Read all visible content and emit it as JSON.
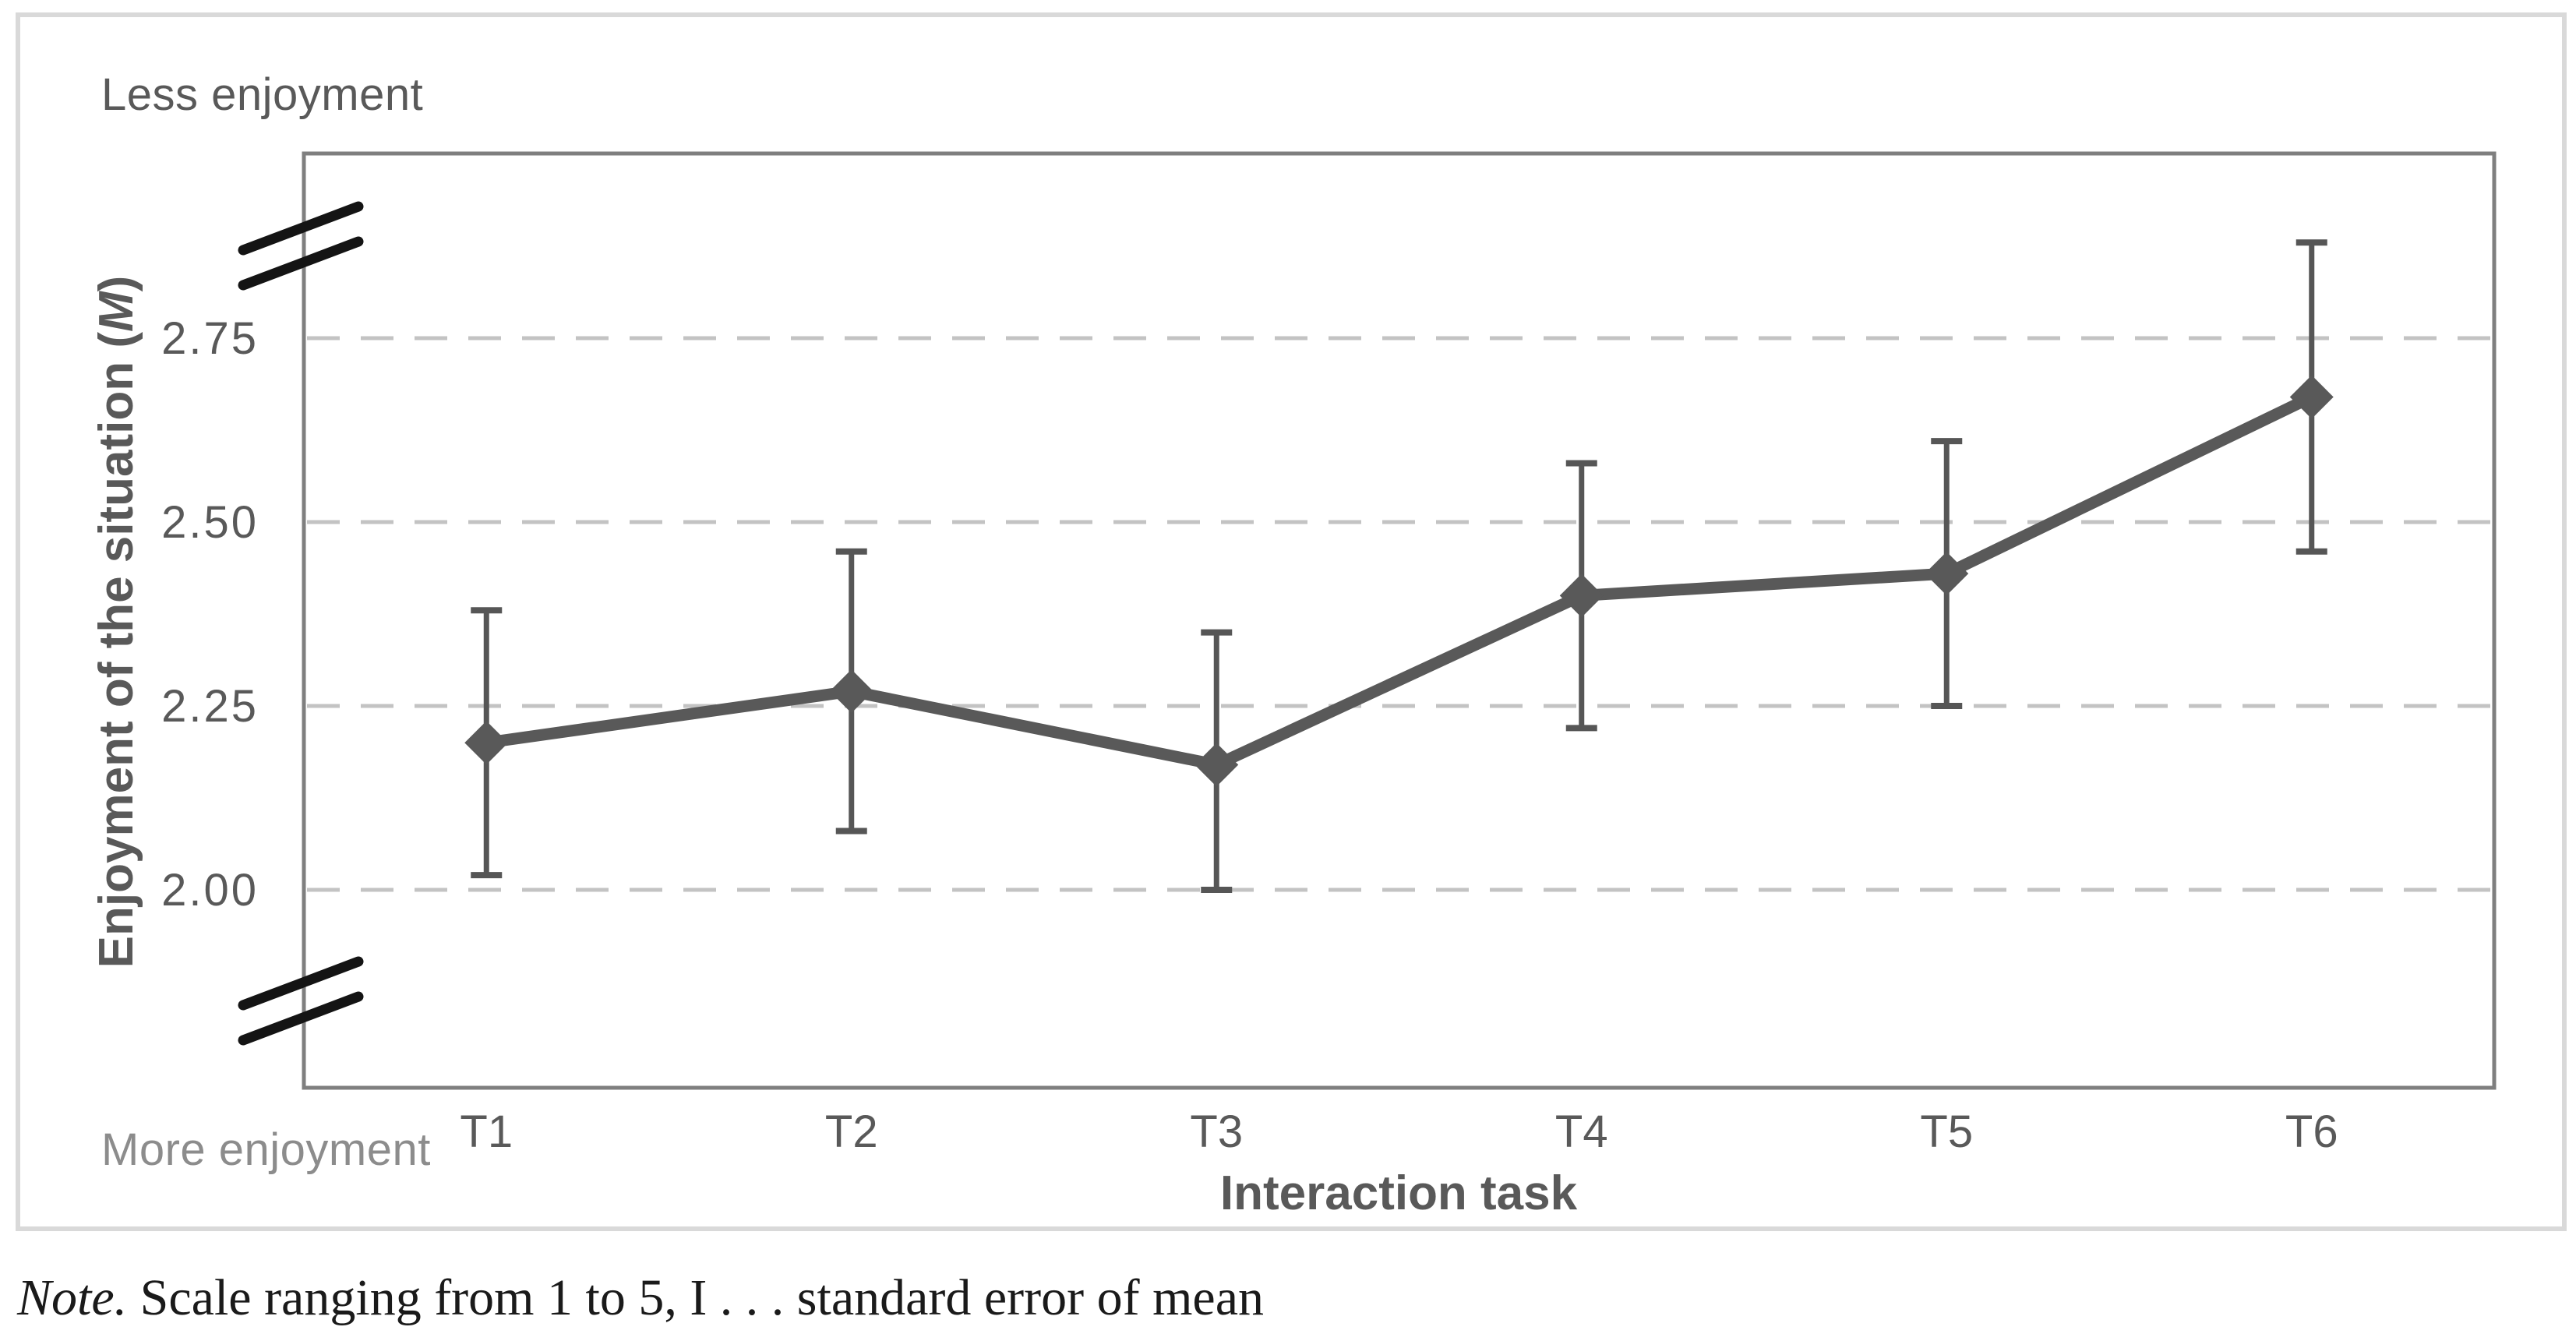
{
  "note": {
    "prefix": "Note.",
    "text": " Scale ranging from 1 to 5, I . . . standard error of mean"
  },
  "chart_data": {
    "type": "line",
    "title": "",
    "categories": [
      "T1",
      "T2",
      "T3",
      "T4",
      "T5",
      "T6"
    ],
    "series": [
      {
        "name": "Enjoyment of the situation (M)",
        "values": [
          2.2,
          2.27,
          2.17,
          2.4,
          2.43,
          2.67
        ],
        "error_low": [
          2.02,
          2.08,
          2.0,
          2.22,
          2.25,
          2.46
        ],
        "error_high": [
          2.38,
          2.46,
          2.35,
          2.58,
          2.61,
          2.88
        ]
      }
    ],
    "xlabel": "Interaction task",
    "ylabel": "Enjoyment of the situation (M)",
    "ylabel_parts": {
      "prefix": "Enjoyment of the situation (",
      "emphasis": "M",
      "suffix": ")"
    },
    "yticks": [
      2.0,
      2.25,
      2.5,
      2.75
    ],
    "ytick_labels": [
      "2.00",
      "2.25",
      "2.50",
      "2.75"
    ],
    "ylim": [
      1.73,
      3.0
    ],
    "axis_breaks": [
      "y-top",
      "y-bottom"
    ],
    "grid": "horizontal-dashed",
    "legend": "none",
    "marker": "diamond",
    "annotations": {
      "top_left": "Less enjoyment",
      "bottom_left": "More enjoyment"
    },
    "colors": {
      "series": "#595959",
      "error_bar": "#565656",
      "grid": "#c3c3c3",
      "plot_border": "#7f7f7f",
      "tick_text": "#595959",
      "axis_title_text": "#595959",
      "break_mark": "#141414",
      "frame_border": "#d9d9d9",
      "top_annotation_text": "#595959",
      "bottom_annotation_text": "#8c8c8c",
      "note_text": "#1a1a1a"
    }
  }
}
